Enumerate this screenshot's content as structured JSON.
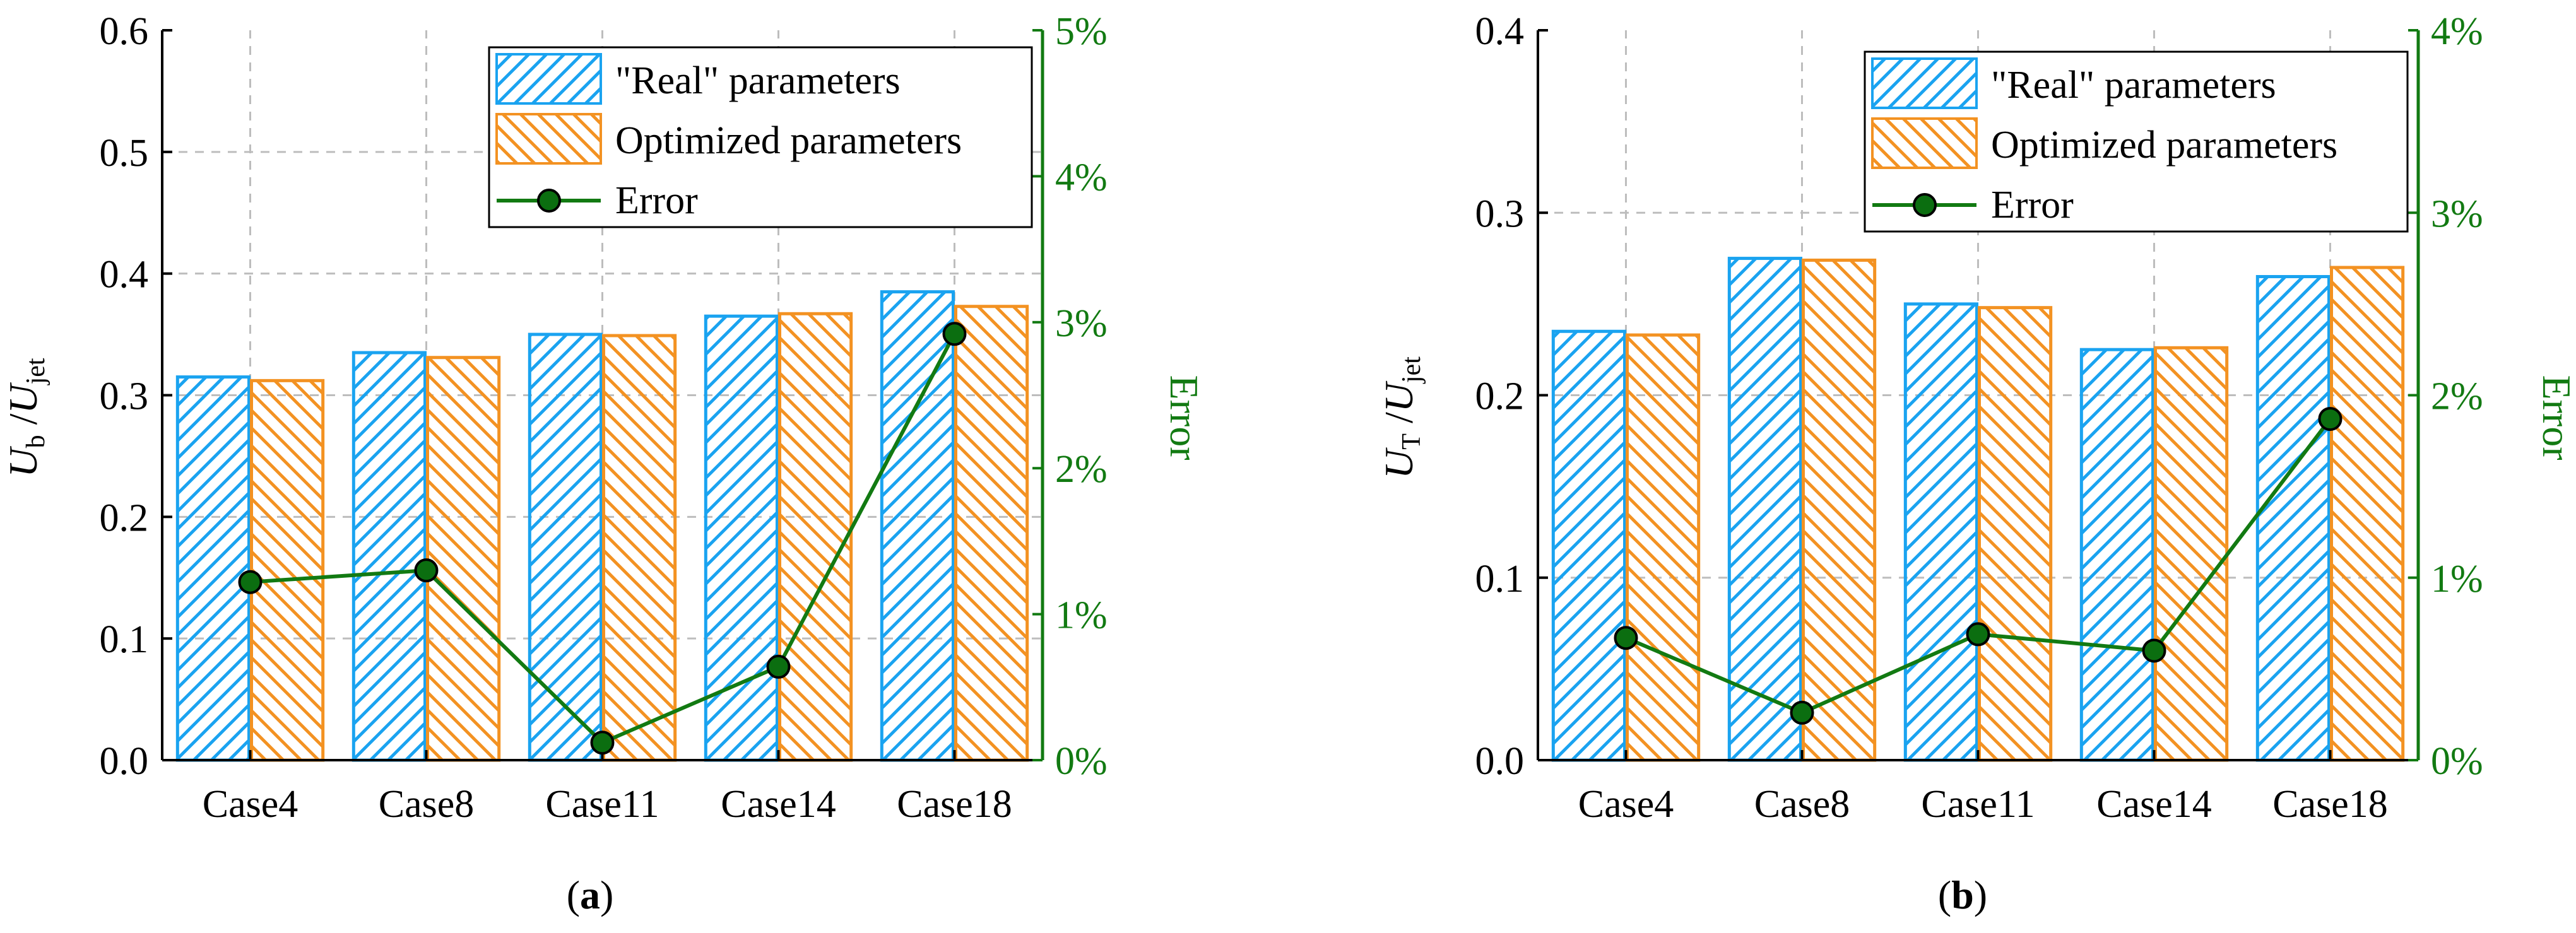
{
  "colors": {
    "real": "#1aa3f0",
    "optimized": "#f39222",
    "error": "#127a12",
    "error_marker_fill": "#0b6e10",
    "axis": "#000000",
    "grid": "#bdbdbd"
  },
  "chart_data": [
    {
      "type": "bar",
      "panel_label": "a",
      "categories": [
        "Case4",
        "Case8",
        "Case11",
        "Case14",
        "Case18"
      ],
      "series": [
        {
          "name": "\"Real\" parameters",
          "values": [
            0.315,
            0.335,
            0.35,
            0.365,
            0.385
          ]
        },
        {
          "name": "Optimized parameters",
          "values": [
            0.312,
            0.331,
            0.349,
            0.367,
            0.373
          ]
        }
      ],
      "error": {
        "name": "Error",
        "values": [
          1.22,
          1.3,
          0.12,
          0.64,
          2.92
        ]
      },
      "ylabel_main": "U",
      "ylabel_main_sub": "b",
      "ylabel_den": "U",
      "ylabel_den_sub": "jet",
      "ylabel_right": "Error",
      "ylim": [
        0,
        0.6
      ],
      "yticks": [
        "0.0",
        "0.1",
        "0.2",
        "0.3",
        "0.4",
        "0.5",
        "0.6"
      ],
      "y2lim": [
        0,
        5
      ],
      "y2ticks": [
        "0%",
        "1%",
        "2%",
        "3%",
        "4%",
        "5%"
      ],
      "legend": [
        "\"Real\" parameters",
        "Optimized parameters",
        "Error"
      ],
      "legend_placement": "top-right",
      "grid": true
    },
    {
      "type": "bar",
      "panel_label": "b",
      "categories": [
        "Case4",
        "Case8",
        "Case11",
        "Case14",
        "Case18"
      ],
      "series": [
        {
          "name": "\"Real\" parameters",
          "values": [
            0.235,
            0.275,
            0.25,
            0.225,
            0.265
          ]
        },
        {
          "name": "Optimized parameters",
          "values": [
            0.233,
            0.274,
            0.248,
            0.226,
            0.27
          ]
        }
      ],
      "error": {
        "name": "Error",
        "values": [
          0.67,
          0.26,
          0.69,
          0.6,
          1.87
        ]
      },
      "ylabel_main": "U",
      "ylabel_main_sub": "T",
      "ylabel_den": "U",
      "ylabel_den_sub": "jet",
      "ylabel_right": "Error",
      "ylim": [
        0,
        0.4
      ],
      "yticks": [
        "0.0",
        "0.1",
        "0.2",
        "0.3",
        "0.4"
      ],
      "y2lim": [
        0,
        4
      ],
      "y2ticks": [
        "0%",
        "1%",
        "2%",
        "3%",
        "4%"
      ],
      "legend": [
        "\"Real\" parameters",
        "Optimized parameters",
        "Error"
      ],
      "legend_placement": "top-right",
      "grid": true
    }
  ]
}
